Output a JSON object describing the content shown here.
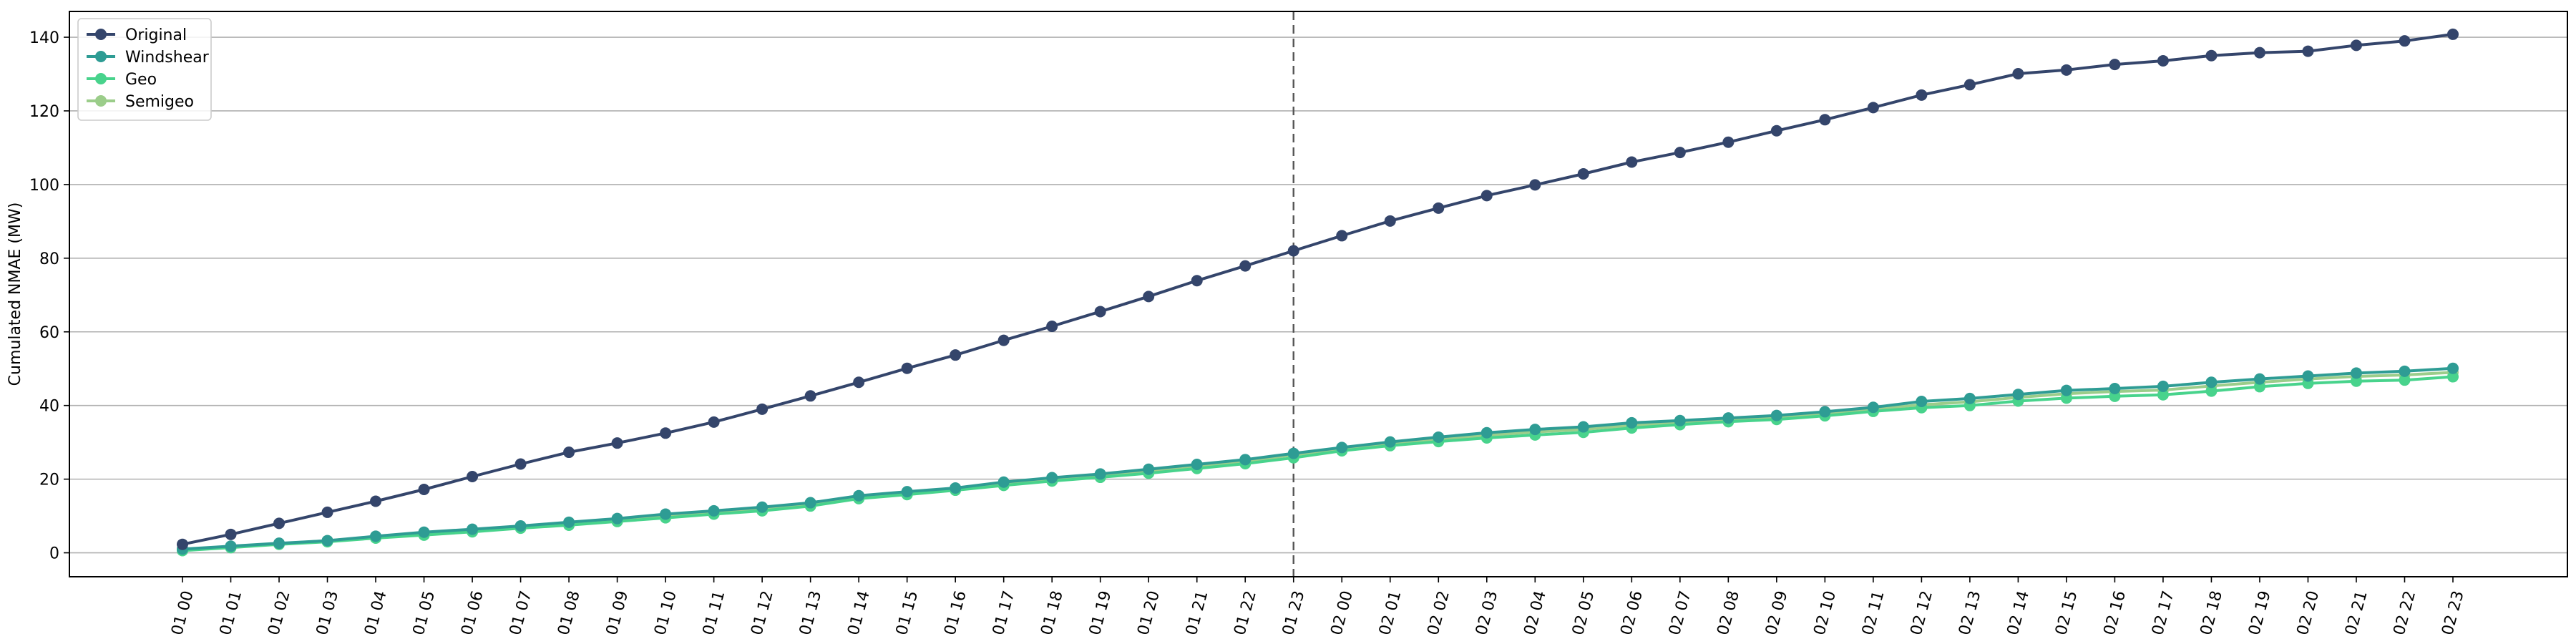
{
  "chart_data": {
    "type": "line",
    "title": "",
    "xlabel": "",
    "ylabel": "Cumulated NMAE (MW)",
    "ylim": [
      -6.5,
      147
    ],
    "yticks": [
      0,
      20,
      40,
      60,
      80,
      100,
      120,
      140
    ],
    "grid": "horizontal",
    "legend_position": "top-left",
    "vline_at": "01 23",
    "categories": [
      "01 00",
      "01 01",
      "01 02",
      "01 03",
      "01 04",
      "01 05",
      "01 06",
      "01 07",
      "01 08",
      "01 09",
      "01 10",
      "01 11",
      "01 12",
      "01 13",
      "01 14",
      "01 15",
      "01 16",
      "01 17",
      "01 18",
      "01 19",
      "01 20",
      "01 21",
      "01 22",
      "01 23",
      "02 00",
      "02 01",
      "02 02",
      "02 03",
      "02 04",
      "02 05",
      "02 06",
      "02 07",
      "02 08",
      "02 09",
      "02 10",
      "02 11",
      "02 12",
      "02 13",
      "02 14",
      "02 15",
      "02 16",
      "02 17",
      "02 18",
      "02 19",
      "02 20",
      "02 21",
      "02 22",
      "02 23"
    ],
    "series": [
      {
        "name": "Original",
        "color": "#34456b",
        "values": [
          2.3,
          5.0,
          8.0,
          11.0,
          14.0,
          17.2,
          20.7,
          24.1,
          27.3,
          29.8,
          32.5,
          35.5,
          39.0,
          42.6,
          46.3,
          50.1,
          53.7,
          57.7,
          61.5,
          65.5,
          69.6,
          73.9,
          77.9,
          82.0,
          86.1,
          90.1,
          93.6,
          97.0,
          99.9,
          102.9,
          106.1,
          108.7,
          111.5,
          114.6,
          117.6,
          120.9,
          124.3,
          127.1,
          130.1,
          131.1,
          132.6,
          133.6,
          135.0,
          135.8,
          136.2,
          137.8,
          139.0,
          140.8
        ]
      },
      {
        "name": "Windshear",
        "color": "#2e9c94",
        "values": [
          1.0,
          1.8,
          2.6,
          3.3,
          4.5,
          5.6,
          6.4,
          7.3,
          8.3,
          9.3,
          10.5,
          11.4,
          12.4,
          13.6,
          15.5,
          16.6,
          17.6,
          19.2,
          20.4,
          21.4,
          22.7,
          24.0,
          25.3,
          27.0,
          28.6,
          30.1,
          31.4,
          32.6,
          33.5,
          34.2,
          35.3,
          35.9,
          36.6,
          37.3,
          38.3,
          39.5,
          41.1,
          41.9,
          43.0,
          44.1,
          44.6,
          45.2,
          46.3,
          47.2,
          48.0,
          48.8,
          49.3,
          50.1
        ]
      },
      {
        "name": "Geo",
        "color": "#48d38c",
        "values": [
          0.6,
          1.4,
          2.3,
          3.0,
          4.0,
          4.8,
          5.7,
          6.7,
          7.5,
          8.5,
          9.5,
          10.5,
          11.4,
          12.7,
          14.7,
          15.8,
          17.0,
          18.3,
          19.5,
          20.5,
          21.6,
          22.9,
          24.2,
          25.8,
          27.7,
          29.1,
          30.2,
          31.2,
          32.0,
          32.7,
          33.9,
          34.8,
          35.6,
          36.2,
          37.2,
          38.4,
          39.4,
          40.0,
          41.2,
          42.0,
          42.5,
          42.9,
          43.9,
          45.1,
          46.0,
          46.6,
          46.9,
          47.8
        ]
      },
      {
        "name": "Semigeo",
        "color": "#9bcd8a",
        "values": [
          0.9,
          1.6,
          2.5,
          3.3,
          4.3,
          5.3,
          6.1,
          7.0,
          8.0,
          9.0,
          10.0,
          11.0,
          12.0,
          13.2,
          15.2,
          16.3,
          17.4,
          18.9,
          20.0,
          21.0,
          22.3,
          23.5,
          24.8,
          26.6,
          28.2,
          29.7,
          30.8,
          31.9,
          32.8,
          33.5,
          34.6,
          35.3,
          36.1,
          36.8,
          37.8,
          39.0,
          40.2,
          41.0,
          42.2,
          43.2,
          43.8,
          44.2,
          45.3,
          46.3,
          47.2,
          47.9,
          48.3,
          49.0
        ]
      }
    ]
  }
}
